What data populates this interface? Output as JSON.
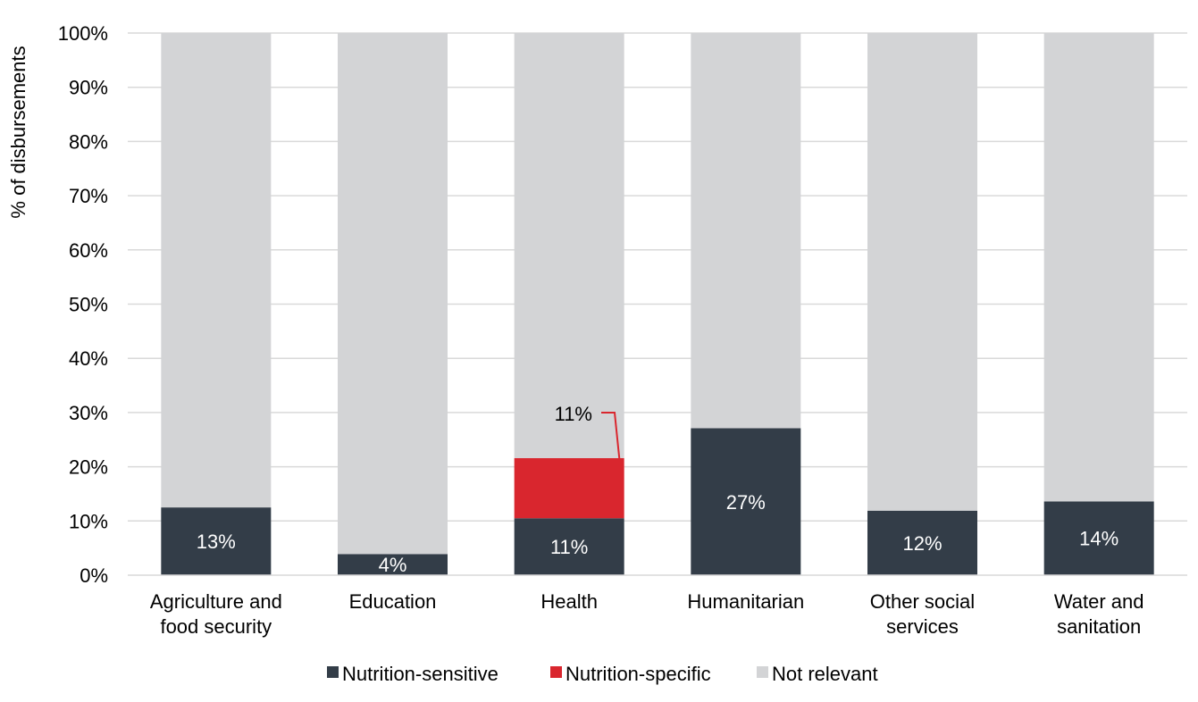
{
  "chart_data": {
    "type": "bar",
    "stacked": true,
    "ylabel": "% of disbursements",
    "ylim": [
      0,
      100
    ],
    "y_ticks": [
      "0%",
      "10%",
      "20%",
      "30%",
      "40%",
      "50%",
      "60%",
      "70%",
      "80%",
      "90%",
      "100%"
    ],
    "grid": true,
    "legend_position": "bottom",
    "categories": [
      [
        "Agriculture and",
        "food security"
      ],
      [
        "Education"
      ],
      [
        "Health"
      ],
      [
        "Humanitarian"
      ],
      [
        "Other social",
        "services"
      ],
      [
        "Water and",
        "sanitation"
      ]
    ],
    "series": [
      {
        "name": "Nutrition-sensitive",
        "color": "#333d48",
        "values": [
          12.5,
          3.9,
          10.5,
          27.1,
          11.9,
          13.6
        ],
        "labels": [
          "13%",
          "4%",
          "11%",
          "27%",
          "12%",
          "14%"
        ]
      },
      {
        "name": "Nutrition-specific",
        "color": "#d9262e",
        "values": [
          0,
          0,
          11.1,
          0,
          0,
          0
        ],
        "labels": [
          "",
          "",
          "11%",
          "",
          "",
          ""
        ]
      },
      {
        "name": "Not relevant",
        "color": "#d3d4d6",
        "values": [
          87.5,
          96.1,
          78.4,
          72.9,
          88.1,
          86.4
        ],
        "labels": [
          "",
          "",
          "",
          "",
          "",
          ""
        ]
      }
    ]
  }
}
